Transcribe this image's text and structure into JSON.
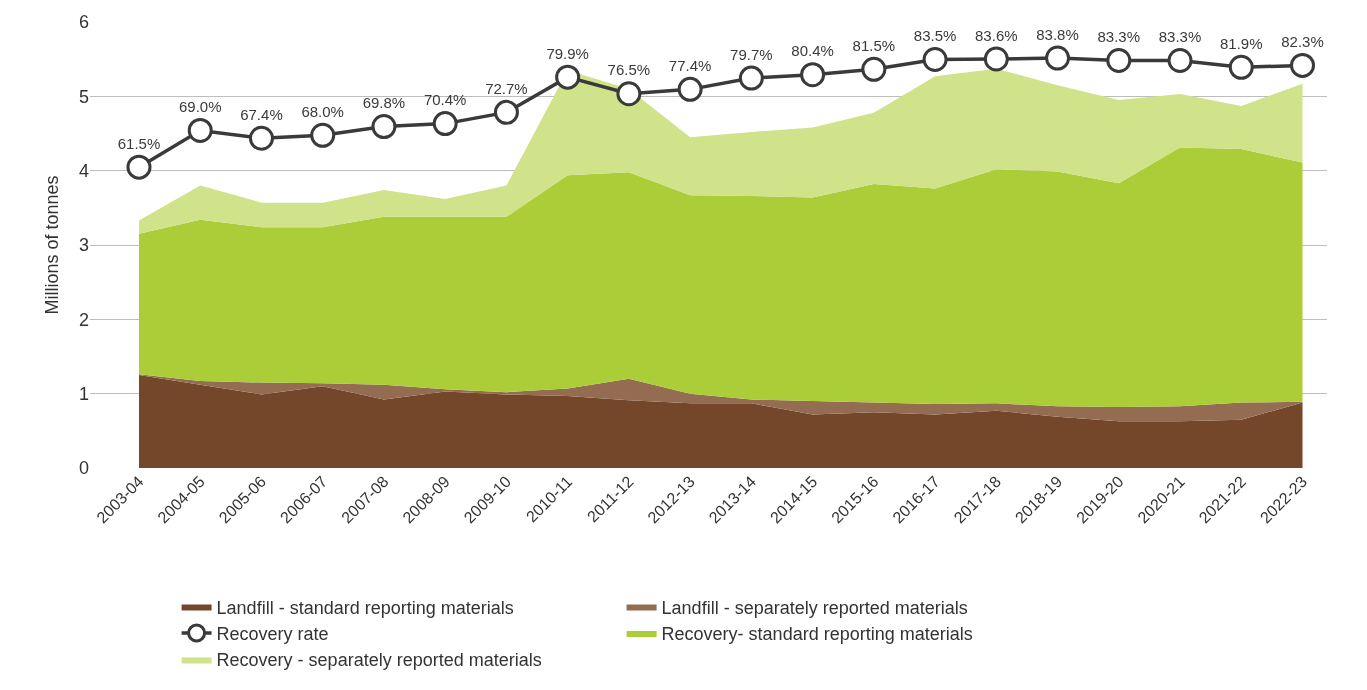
{
  "chart_data": {
    "type": "area",
    "stacked": true,
    "ylabel": "Millions of tonnes",
    "categories": [
      "2003-04",
      "2004-05",
      "2005-06",
      "2006-07",
      "2007-08",
      "2008-09",
      "2009-10",
      "2010-11",
      "2011-12",
      "2012-13",
      "2013-14",
      "2014-15",
      "2015-16",
      "2016-17",
      "2017-18",
      "2018-19",
      "2019-20",
      "2020-21",
      "2021-22",
      "2022-23"
    ],
    "series": [
      {
        "name": "Landfill - standard reporting materials",
        "color": "#74472a",
        "values": [
          1.25,
          1.12,
          0.99,
          1.1,
          0.92,
          1.03,
          0.99,
          0.97,
          0.91,
          0.87,
          0.87,
          0.72,
          0.75,
          0.72,
          0.77,
          0.69,
          0.63,
          0.63,
          0.65,
          0.88
        ]
      },
      {
        "name": "Landfill - separately reported materials",
        "color": "#936c52",
        "values": [
          0.01,
          0.05,
          0.16,
          0.04,
          0.2,
          0.03,
          0.03,
          0.1,
          0.29,
          0.13,
          0.05,
          0.18,
          0.13,
          0.14,
          0.1,
          0.14,
          0.19,
          0.2,
          0.23,
          0.01
        ]
      },
      {
        "name": "Recovery- standard reporting materials",
        "color": "#abcd37",
        "values": [
          1.89,
          2.17,
          2.09,
          2.1,
          2.26,
          2.32,
          2.36,
          2.87,
          2.78,
          2.67,
          2.74,
          2.74,
          2.94,
          2.9,
          3.15,
          3.16,
          3.01,
          3.48,
          3.41,
          3.22
        ]
      },
      {
        "name": "Recovery - separately reported materials",
        "color": "#d0e28a",
        "values": [
          0.18,
          0.46,
          0.33,
          0.33,
          0.36,
          0.24,
          0.42,
          1.41,
          1.12,
          0.78,
          0.86,
          0.94,
          0.96,
          1.51,
          1.35,
          1.16,
          1.12,
          0.72,
          0.58,
          1.06
        ]
      },
      {
        "name": "Recovery rate",
        "type": "line",
        "axis": "y2",
        "color": "#3a3a3a",
        "marker": "circle",
        "values": [
          61.5,
          69.0,
          67.4,
          68.0,
          69.8,
          70.4,
          72.7,
          79.9,
          76.5,
          77.4,
          79.7,
          80.4,
          81.5,
          83.5,
          83.6,
          83.8,
          83.3,
          83.3,
          81.9,
          82.3
        ],
        "value_labels": [
          "61.5%",
          "69.0%",
          "67.4%",
          "68.0%",
          "69.8%",
          "70.4%",
          "72.7%",
          "79.9%",
          "76.5%",
          "77.4%",
          "79.7%",
          "80.4%",
          "81.5%",
          "83.5%",
          "83.6%",
          "83.8%",
          "83.3%",
          "83.3%",
          "81.9%",
          "82.3%"
        ]
      }
    ],
    "ylim": [
      0,
      6
    ],
    "yticks": [
      0,
      1,
      2,
      3,
      4,
      5,
      6
    ],
    "tick_labels": "xy",
    "grid": "y",
    "legend": "bottom"
  }
}
